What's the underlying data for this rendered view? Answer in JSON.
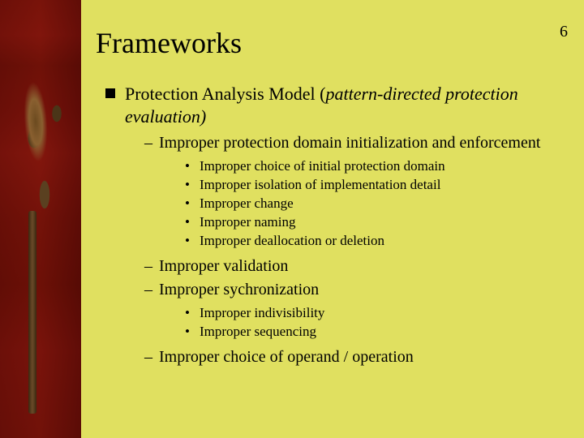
{
  "page_number": "6",
  "title": "Frameworks",
  "background_color": "#e0e060",
  "text_color": "#000000",
  "fonts": {
    "title_size_pt": 36,
    "level1_size_pt": 22,
    "level2_size_pt": 20,
    "level3_size_pt": 17,
    "family": "Times New Roman"
  },
  "bullets": {
    "level1_marker": "filled-square",
    "level2_marker": "en-dash",
    "level3_marker": "bullet-dot"
  },
  "item": {
    "heading_main": "Protection Analysis Model (",
    "heading_italic": "pattern-directed protection evaluation)",
    "sub": [
      {
        "label": "Improper protection domain initialization and enforcement",
        "children": [
          "Improper choice of initial protection domain",
          "Improper isolation of implementation detail",
          "Improper change",
          "Improper naming",
          "Improper deallocation or deletion"
        ]
      },
      {
        "label": "Improper validation",
        "children": []
      },
      {
        "label": "Improper sychronization",
        "children": [
          "Improper indivisibility",
          "Improper sequencing"
        ]
      },
      {
        "label": "Improper choice of operand / operation",
        "children": []
      }
    ]
  }
}
